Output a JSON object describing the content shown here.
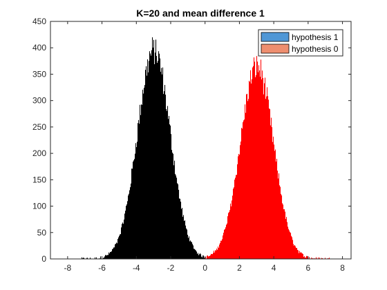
{
  "chart_data": {
    "type": "bar",
    "title": "K=20 and mean difference 1",
    "xlabel": "",
    "ylabel": "",
    "xlim": [
      -9,
      8.5
    ],
    "ylim": [
      0,
      450
    ],
    "xticks": [
      -8,
      -6,
      -4,
      -2,
      0,
      2,
      4,
      6,
      8
    ],
    "yticks": [
      0,
      50,
      100,
      150,
      200,
      250,
      300,
      350,
      400,
      450
    ],
    "grid": false,
    "legend": {
      "placement": "top-right",
      "entries": [
        {
          "label": "hypothesis 1",
          "color": "#4f97d6"
        },
        {
          "label": "hypothesis 0",
          "color": "#ee8e6f"
        }
      ]
    },
    "series": [
      {
        "label": "hypothesis 1",
        "color": "#000000",
        "mean": -3.0,
        "std": 0.96,
        "peak": 395,
        "xrange": [
          -7.2,
          1.0
        ]
      },
      {
        "label": "hypothesis 0",
        "color": "#ff0000",
        "mean": 3.0,
        "std": 0.96,
        "peak": 365,
        "xrange": [
          0.0,
          7.2
        ]
      }
    ]
  }
}
